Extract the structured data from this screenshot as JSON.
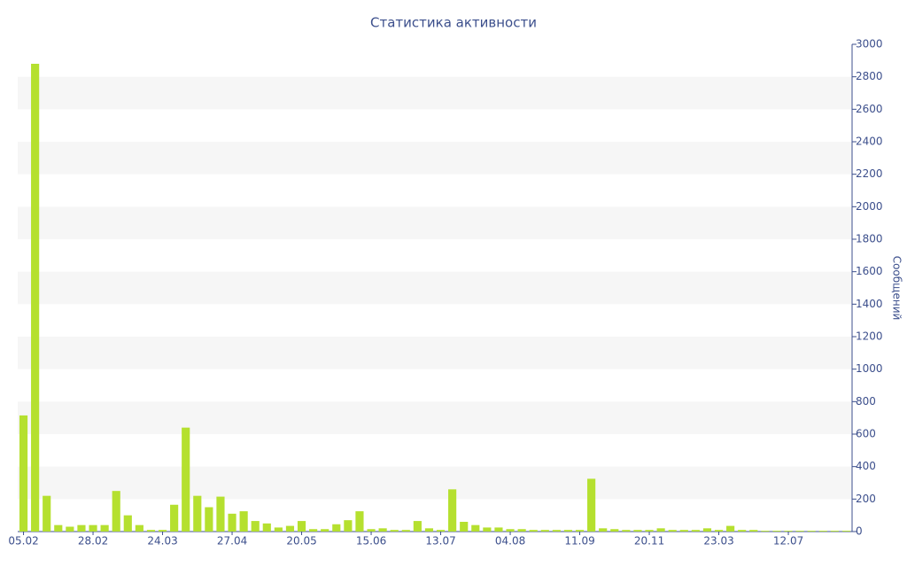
{
  "chart_data": {
    "type": "bar",
    "title": "Статистика активности",
    "y_label": "Сообщений",
    "categories": [
      "05.02",
      null,
      null,
      null,
      null,
      null,
      "28.02",
      null,
      null,
      null,
      null,
      null,
      "24.03",
      null,
      null,
      null,
      null,
      null,
      "27.04",
      null,
      null,
      null,
      null,
      null,
      "20.05",
      null,
      null,
      null,
      null,
      null,
      "15.06",
      null,
      null,
      null,
      null,
      null,
      "13.07",
      null,
      null,
      null,
      null,
      null,
      "04.08",
      null,
      null,
      null,
      null,
      null,
      "11.09",
      null,
      null,
      null,
      null,
      null,
      "20.11",
      null,
      null,
      null,
      null,
      null,
      "23.03",
      null,
      null,
      null,
      null,
      null,
      "12.07",
      null,
      null,
      null,
      null,
      null
    ],
    "values": [
      715,
      2880,
      220,
      40,
      30,
      40,
      40,
      40,
      250,
      100,
      40,
      10,
      10,
      165,
      640,
      220,
      150,
      215,
      110,
      125,
      65,
      50,
      25,
      35,
      65,
      15,
      15,
      45,
      70,
      125,
      15,
      20,
      10,
      10,
      65,
      20,
      10,
      260,
      60,
      40,
      25,
      25,
      15,
      15,
      10,
      10,
      10,
      10,
      10,
      325,
      20,
      15,
      10,
      10,
      10,
      20,
      10,
      10,
      10,
      20,
      10,
      35,
      10,
      10,
      5,
      5,
      5,
      5,
      5,
      5,
      5,
      5
    ],
    "color": "#b5e02f",
    "ylim": [
      0,
      3000
    ],
    "yticks": [
      0,
      200,
      400,
      600,
      800,
      1000,
      1200,
      1400,
      1600,
      1800,
      2000,
      2200,
      2400,
      2600,
      2800,
      3000
    ],
    "grid": "bands",
    "band_color": "#f6f6f6"
  }
}
